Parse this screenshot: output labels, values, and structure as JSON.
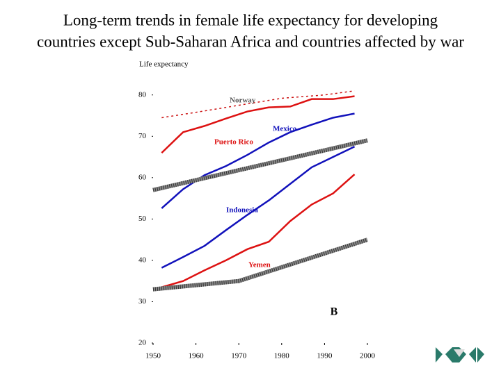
{
  "chart_data": {
    "type": "line",
    "title": [
      "Long-term trends in female life expectancy for developing",
      "countries except Sub-Saharan Africa and countries affected by war"
    ],
    "y_label": "Life expectancy",
    "annotation": "B",
    "xlim": [
      1950,
      2000
    ],
    "xticks": [
      1950,
      1960,
      1970,
      1980,
      1990,
      2000
    ],
    "ylim": [
      20,
      86
    ],
    "yticks": [
      20,
      30,
      40,
      50,
      60,
      70,
      80
    ],
    "series": [
      {
        "name": "Norway",
        "color": "#cc1111",
        "dashed": true,
        "label_color": "#555555",
        "x": [
          1952,
          1960,
          1970,
          1980,
          1990,
          1997
        ],
        "values": [
          74.5,
          75.8,
          77.5,
          79.2,
          80,
          81
        ]
      },
      {
        "name": "Puerto Rico",
        "color": "#dd1111",
        "x": [
          1952,
          1957,
          1962,
          1967,
          1972,
          1977,
          1982,
          1987,
          1992,
          1997
        ],
        "values": [
          66,
          71,
          72.5,
          74.3,
          76,
          77,
          77.2,
          79,
          79,
          79.7
        ]
      },
      {
        "name": "Mexico",
        "color": "#1111bb",
        "x": [
          1952,
          1957,
          1962,
          1967,
          1972,
          1977,
          1982,
          1987,
          1992,
          1997
        ],
        "values": [
          52.6,
          57.2,
          60.6,
          62.8,
          65.5,
          68.5,
          71,
          72.8,
          74.5,
          75.5
        ]
      },
      {
        "name": "Indonesia",
        "color": "#1111bb",
        "x": [
          1952,
          1957,
          1962,
          1967,
          1972,
          1977,
          1982,
          1987,
          1992,
          1997
        ],
        "values": [
          38.2,
          40.8,
          43.5,
          47.3,
          51,
          54.5,
          58.5,
          62.5,
          65,
          67.5
        ]
      },
      {
        "name": "Yemen",
        "color": "#dd1111",
        "x": [
          1952,
          1957,
          1962,
          1967,
          1972,
          1977,
          1982,
          1987,
          1992,
          1997
        ],
        "values": [
          33.5,
          35,
          37.6,
          40,
          42.7,
          44.5,
          49.5,
          53.5,
          56.2,
          60.8
        ]
      },
      {
        "color": "#888888",
        "hatched": true,
        "x": [
          1950,
          2000
        ],
        "values": [
          57,
          69
        ]
      },
      {
        "color": "#888888",
        "hatched": true,
        "x": [
          1950,
          1970,
          2000
        ],
        "values": [
          33,
          35,
          45
        ]
      }
    ]
  }
}
